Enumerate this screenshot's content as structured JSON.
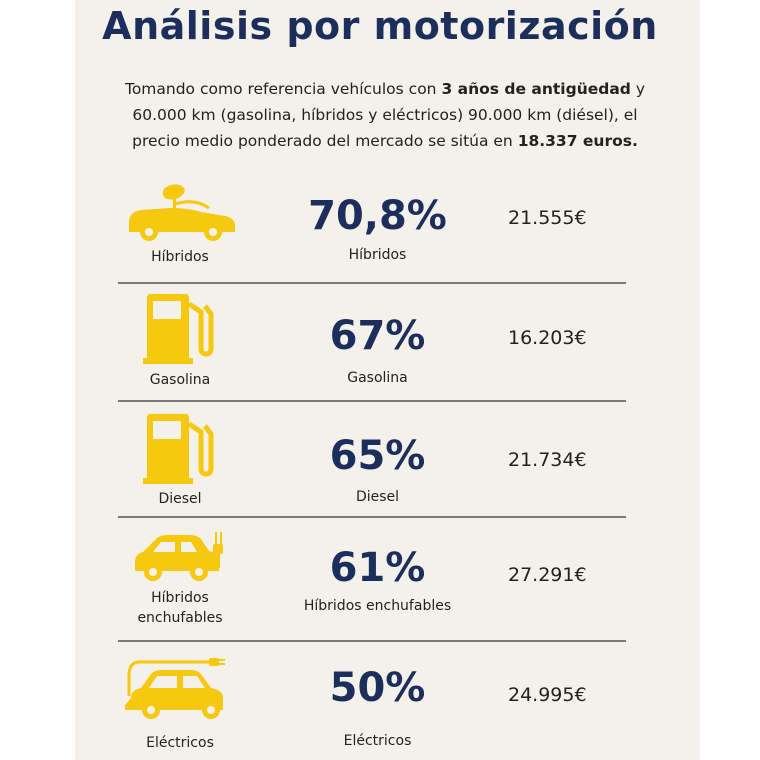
{
  "title": "Análisis por motorización",
  "intro": {
    "line1_pre": "Tomando como referencia vehículos con ",
    "line1_bold": "3 años de antigüedad",
    "line1_post": " y",
    "line2": "60.000 km (gasolina, híbridos y eléctricos) 90.000 km (diésel), el",
    "line3_pre": "precio medio ponderado del mercado se sitúa en ",
    "line3_bold": "18.337 euros."
  },
  "colors": {
    "accent_yellow": "#f6c80f",
    "navy": "#1c2f5c",
    "panel_bg": "#f4f1ea"
  },
  "rows": [
    {
      "icon": "hybrid-car-leaf-icon",
      "icon_label": "Híbridos",
      "percent": "70,8%",
      "sub_label": "Híbridos",
      "price": "21.555€"
    },
    {
      "icon": "fuel-pump-icon",
      "icon_label": "Gasolina",
      "percent": "67%",
      "sub_label": "Gasolina",
      "price": "16.203€"
    },
    {
      "icon": "fuel-pump-icon",
      "icon_label": "Diesel",
      "percent": "65%",
      "sub_label": "Diesel",
      "price": "21.734€"
    },
    {
      "icon": "plug-in-hybrid-car-icon",
      "icon_label": "Híbridos enchufables",
      "percent": "61%",
      "sub_label": "Híbridos enchufables",
      "price": "27.291€"
    },
    {
      "icon": "electric-car-icon",
      "icon_label": "Eléctricos",
      "percent": "50%",
      "sub_label": "Eléctricos",
      "price": "24.995€"
    }
  ]
}
